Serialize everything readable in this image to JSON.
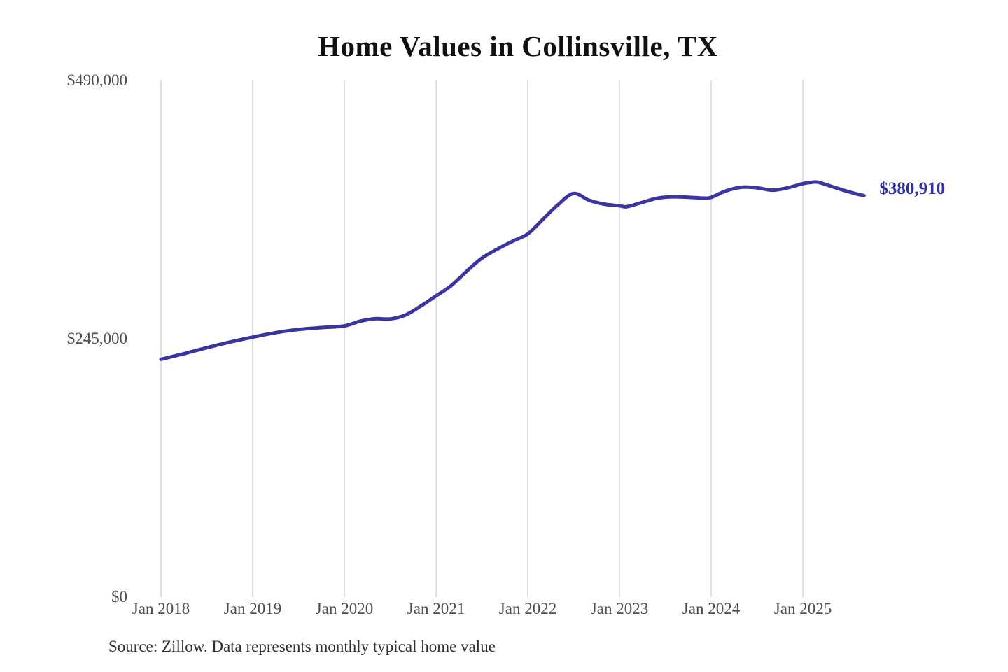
{
  "chart_data": {
    "type": "line",
    "title": "Home Values in Collinsville, TX",
    "source_note": "Source: Zillow. Data represents monthly typical home value",
    "xlabel": "",
    "ylabel": "",
    "ylim": [
      0,
      490000
    ],
    "grid": "vertical-only",
    "gridline_color": "#cccccc",
    "line_color": "#3a35a0",
    "last_value": 380910,
    "last_value_label": "$380,910",
    "y_ticks": [
      {
        "label": "$490,000",
        "value": 490000
      },
      {
        "label": "$245,000",
        "value": 245000
      },
      {
        "label": "$0",
        "value": 0
      }
    ],
    "x_ticks": [
      {
        "label": "Jan 2018",
        "date": "2018-01"
      },
      {
        "label": "Jan 2019",
        "date": "2019-01"
      },
      {
        "label": "Jan 2020",
        "date": "2020-01"
      },
      {
        "label": "Jan 2021",
        "date": "2021-01"
      },
      {
        "label": "Jan 2022",
        "date": "2022-01"
      },
      {
        "label": "Jan 2023",
        "date": "2023-01"
      },
      {
        "label": "Jan 2024",
        "date": "2024-01"
      },
      {
        "label": "Jan 2025",
        "date": "2025-01"
      }
    ],
    "series": [
      {
        "name": "Monthly typical home value",
        "points": [
          {
            "date": "2018-01",
            "value": 225500
          },
          {
            "date": "2018-04",
            "value": 230800
          },
          {
            "date": "2018-07",
            "value": 236500
          },
          {
            "date": "2018-10",
            "value": 241800
          },
          {
            "date": "2019-01",
            "value": 246500
          },
          {
            "date": "2019-04",
            "value": 250800
          },
          {
            "date": "2019-07",
            "value": 253800
          },
          {
            "date": "2019-10",
            "value": 255600
          },
          {
            "date": "2020-01",
            "value": 257200
          },
          {
            "date": "2020-03",
            "value": 261500
          },
          {
            "date": "2020-05",
            "value": 264000
          },
          {
            "date": "2020-07",
            "value": 263800
          },
          {
            "date": "2020-09",
            "value": 267500
          },
          {
            "date": "2020-11",
            "value": 276000
          },
          {
            "date": "2021-01",
            "value": 285700
          },
          {
            "date": "2021-03",
            "value": 295500
          },
          {
            "date": "2021-05",
            "value": 309000
          },
          {
            "date": "2021-07",
            "value": 321500
          },
          {
            "date": "2021-09",
            "value": 330000
          },
          {
            "date": "2021-11",
            "value": 337500
          },
          {
            "date": "2022-01",
            "value": 344500
          },
          {
            "date": "2022-03",
            "value": 358500
          },
          {
            "date": "2022-05",
            "value": 372500
          },
          {
            "date": "2022-07",
            "value": 382900
          },
          {
            "date": "2022-09",
            "value": 376500
          },
          {
            "date": "2022-11",
            "value": 372800
          },
          {
            "date": "2023-01",
            "value": 371200
          },
          {
            "date": "2023-02",
            "value": 370400
          },
          {
            "date": "2023-04",
            "value": 374500
          },
          {
            "date": "2023-06",
            "value": 378500
          },
          {
            "date": "2023-08",
            "value": 379700
          },
          {
            "date": "2023-10",
            "value": 379300
          },
          {
            "date": "2023-12",
            "value": 378500
          },
          {
            "date": "2024-01",
            "value": 379200
          },
          {
            "date": "2024-03",
            "value": 385500
          },
          {
            "date": "2024-05",
            "value": 388800
          },
          {
            "date": "2024-07",
            "value": 388300
          },
          {
            "date": "2024-09",
            "value": 386000
          },
          {
            "date": "2024-11",
            "value": 388300
          },
          {
            "date": "2025-01",
            "value": 392200
          },
          {
            "date": "2025-02",
            "value": 393300
          },
          {
            "date": "2025-03",
            "value": 393500
          },
          {
            "date": "2025-05",
            "value": 389000
          },
          {
            "date": "2025-07",
            "value": 384500
          },
          {
            "date": "2025-08",
            "value": 382500
          },
          {
            "date": "2025-09",
            "value": 380910
          }
        ]
      }
    ]
  }
}
